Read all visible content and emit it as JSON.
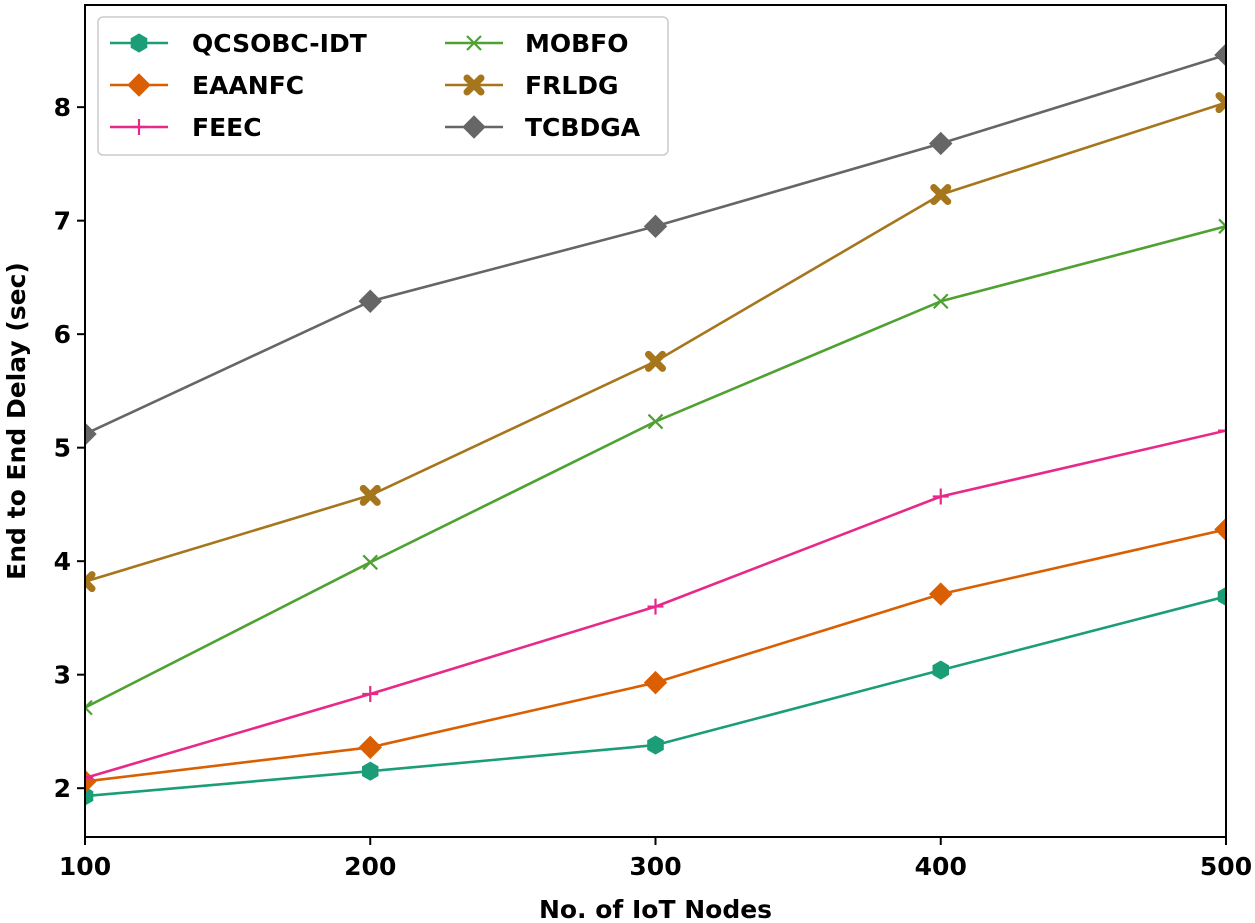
{
  "chart_data": {
    "type": "line",
    "title": "",
    "xlabel": "No. of IoT Nodes",
    "ylabel": "End to End Delay (sec)",
    "x": [
      100,
      200,
      300,
      400,
      500
    ],
    "xlim": [
      100,
      500
    ],
    "ylim": [
      1.57,
      8.9
    ],
    "xticks": [
      100,
      200,
      300,
      400,
      500
    ],
    "yticks": [
      2,
      3,
      4,
      5,
      6,
      7,
      8
    ],
    "grid": false,
    "legend_position": "top-left",
    "series": [
      {
        "name": "QCSOBC-IDT",
        "color": "#1b9e77",
        "marker": "hexagon",
        "values": [
          1.93,
          2.15,
          2.38,
          3.04,
          3.69
        ]
      },
      {
        "name": "EAANFC",
        "color": "#d95f02",
        "marker": "diamond",
        "values": [
          2.06,
          2.36,
          2.93,
          3.71,
          4.28
        ]
      },
      {
        "name": "FEEC",
        "color": "#e7298a",
        "marker": "plus",
        "values": [
          2.09,
          2.83,
          3.6,
          4.57,
          5.15
        ]
      },
      {
        "name": "MOBFO",
        "color": "#4fa131",
        "marker": "x",
        "values": [
          2.71,
          3.99,
          5.23,
          6.29,
          6.95
        ]
      },
      {
        "name": "FRLDG",
        "color": "#a6761d",
        "marker": "x-filled",
        "values": [
          3.82,
          4.58,
          5.76,
          7.23,
          8.04
        ]
      },
      {
        "name": "TCBDGA",
        "color": "#666666",
        "marker": "diamond",
        "values": [
          5.12,
          6.29,
          6.95,
          7.68,
          8.46
        ]
      }
    ]
  }
}
